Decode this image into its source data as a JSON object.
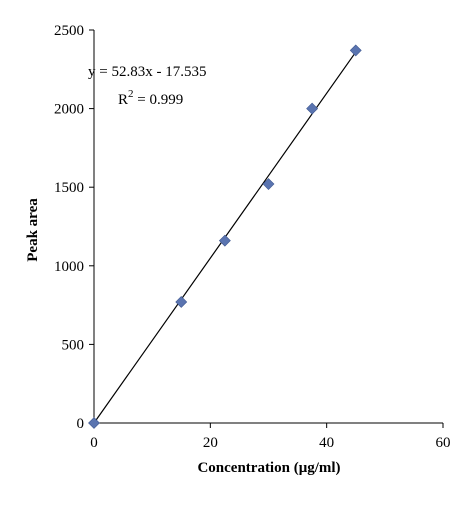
{
  "chart_data": {
    "type": "scatter",
    "title": "",
    "xlabel": "Concentration (μg/ml)",
    "ylabel": "Peak area",
    "xlim": [
      0,
      60
    ],
    "ylim": [
      0,
      2500
    ],
    "xticks": [
      0,
      20,
      40,
      60
    ],
    "yticks": [
      0,
      500,
      1000,
      1500,
      2000,
      2500
    ],
    "grid": false,
    "legend": "none",
    "marker": "diamond",
    "marker_color": "#5a74b0",
    "points": [
      {
        "x": 0,
        "y": 0
      },
      {
        "x": 15,
        "y": 770
      },
      {
        "x": 22.5,
        "y": 1160
      },
      {
        "x": 30,
        "y": 1520
      },
      {
        "x": 37.5,
        "y": 2000
      },
      {
        "x": 45,
        "y": 2370
      }
    ],
    "trendline": {
      "slope": 52.83,
      "intercept": -17.535,
      "x_range": [
        0,
        45
      ],
      "equation_label": "y = 52.83x - 17.535",
      "r2_label": "R",
      "r2_exponent": "2",
      "r2_value": " = 0.999"
    }
  }
}
